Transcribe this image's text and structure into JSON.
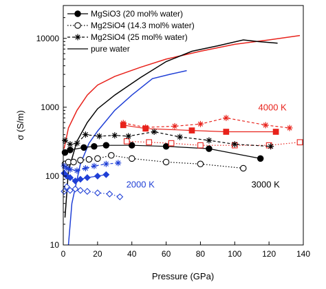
{
  "chart_data": {
    "type": "line",
    "xlabel": "Pressure (GPa)",
    "ylabel": "σ (S/m)",
    "xlim": [
      0,
      140
    ],
    "ylim": [
      10,
      30000
    ],
    "yscale": "log",
    "xticks": [
      0,
      20,
      40,
      60,
      80,
      100,
      120,
      140
    ],
    "yticks": [
      10,
      100,
      1000,
      10000
    ],
    "grid": false,
    "legend_position": "top-left",
    "legend": [
      {
        "label": "MgSiO3 (20 mol% water)",
        "marker": "filled-circle",
        "dash": "solid"
      },
      {
        "label": "Mg2SiO4 (14.3 mol% water)",
        "marker": "open-circle",
        "dash": "dotted"
      },
      {
        "label": "Mg2SiO4 (25 mol% water)",
        "marker": "asterisk",
        "dash": "dashed"
      },
      {
        "label": "pure water",
        "marker": "none",
        "dash": "solid"
      }
    ],
    "annotations": [
      {
        "text": "4000 K",
        "x": 122,
        "y": 900,
        "color": "#e8221b"
      },
      {
        "text": "3000 K",
        "x": 118,
        "y": 68,
        "color": "#000000"
      },
      {
        "text": "2000 K",
        "x": 45,
        "y": 68,
        "color": "#1f3fd6"
      }
    ],
    "series": [
      {
        "group": "pure water",
        "temperature": "4000 K",
        "color": "#e8221b",
        "marker": "none",
        "dash": "solid",
        "points": [
          [
            0.5,
            250
          ],
          [
            3,
            500
          ],
          [
            8,
            900
          ],
          [
            14,
            1500
          ],
          [
            20,
            2100
          ],
          [
            30,
            2800
          ],
          [
            45,
            3800
          ],
          [
            60,
            5000
          ],
          [
            80,
            6500
          ],
          [
            100,
            8200
          ],
          [
            120,
            9500
          ],
          [
            138,
            11000
          ]
        ]
      },
      {
        "group": "pure water",
        "temperature": "3000 K",
        "color": "#000000",
        "marker": "none",
        "dash": "solid",
        "points": [
          [
            1,
            25
          ],
          [
            3,
            120
          ],
          [
            8,
            320
          ],
          [
            14,
            600
          ],
          [
            20,
            950
          ],
          [
            30,
            1500
          ],
          [
            45,
            2700
          ],
          [
            60,
            4600
          ],
          [
            75,
            6500
          ],
          [
            90,
            7800
          ],
          [
            105,
            9500
          ],
          [
            113,
            9000
          ],
          [
            125,
            8500
          ]
        ]
      },
      {
        "group": "pure water",
        "temperature": "2000 K",
        "color": "#1f3fd6",
        "marker": "none",
        "dash": "solid",
        "points": [
          [
            3,
            10
          ],
          [
            5,
            40
          ],
          [
            10,
            150
          ],
          [
            15,
            300
          ],
          [
            20,
            450
          ],
          [
            30,
            900
          ],
          [
            40,
            1500
          ],
          [
            52,
            2600
          ],
          [
            62,
            3000
          ],
          [
            72,
            3400
          ]
        ]
      },
      {
        "group": "MgSiO3 (20 mol% water)",
        "temperature": "4000 K",
        "color": "#e8221b",
        "marker": "filled-square",
        "dash": "solid",
        "points": [
          [
            35,
            550
          ],
          [
            48,
            490
          ],
          [
            75,
            460
          ],
          [
            95,
            440
          ],
          [
            124,
            440
          ]
        ]
      },
      {
        "group": "MgSiO3 (20 mol% water)",
        "temperature": "3000 K",
        "color": "#000000",
        "marker": "filled-circle",
        "dash": "solid",
        "points": [
          [
            1,
            220
          ],
          [
            4,
            240
          ],
          [
            12,
            260
          ],
          [
            18,
            270
          ],
          [
            25,
            280
          ],
          [
            40,
            280
          ],
          [
            60,
            270
          ],
          [
            85,
            250
          ],
          [
            115,
            180
          ]
        ]
      },
      {
        "group": "MgSiO3 (20 mol% water)",
        "temperature": "2000 K",
        "color": "#1f3fd6",
        "marker": "filled-diamond",
        "dash": "solid",
        "points": [
          [
            0.5,
            110
          ],
          [
            2,
            100
          ],
          [
            4,
            95
          ],
          [
            7,
            85
          ],
          [
            10,
            90
          ],
          [
            14,
            95
          ],
          [
            20,
            100
          ],
          [
            25,
            105
          ]
        ]
      },
      {
        "group": "Mg2SiO4 (14.3 mol% water)",
        "temperature": "4000 K",
        "color": "#e8221b",
        "marker": "open-square",
        "dash": "dotted",
        "points": [
          [
            37,
            320
          ],
          [
            50,
            310
          ],
          [
            63,
            300
          ],
          [
            80,
            280
          ],
          [
            100,
            280
          ],
          [
            120,
            280
          ],
          [
            138,
            310
          ]
        ]
      },
      {
        "group": "Mg2SiO4 (14.3 mol% water)",
        "temperature": "3000 K",
        "color": "#000000",
        "marker": "open-circle",
        "dash": "dotted",
        "points": [
          [
            1,
            150
          ],
          [
            3,
            160
          ],
          [
            6,
            160
          ],
          [
            10,
            170
          ],
          [
            15,
            175
          ],
          [
            20,
            180
          ],
          [
            28,
            200
          ],
          [
            40,
            180
          ],
          [
            60,
            160
          ],
          [
            80,
            150
          ],
          [
            105,
            130
          ]
        ]
      },
      {
        "group": "Mg2SiO4 (14.3 mol% water)",
        "temperature": "2000 K",
        "color": "#1f3fd6",
        "marker": "open-diamond",
        "dash": "dotted",
        "points": [
          [
            0.5,
            60
          ],
          [
            2,
            70
          ],
          [
            4,
            62
          ],
          [
            7,
            65
          ],
          [
            10,
            62
          ],
          [
            14,
            60
          ],
          [
            20,
            57
          ],
          [
            27,
            55
          ],
          [
            33,
            50
          ]
        ]
      },
      {
        "group": "Mg2SiO4 (25 mol% water)",
        "temperature": "4000 K",
        "color": "#e8221b",
        "marker": "asterisk",
        "dash": "dashed",
        "points": [
          [
            35,
            590
          ],
          [
            48,
            510
          ],
          [
            65,
            530
          ],
          [
            80,
            570
          ],
          [
            95,
            700
          ],
          [
            118,
            550
          ],
          [
            132,
            500
          ]
        ]
      },
      {
        "group": "Mg2SiO4 (25 mol% water)",
        "temperature": "3000 K",
        "color": "#000000",
        "marker": "asterisk",
        "dash": "dashed",
        "points": [
          [
            1,
            330
          ],
          [
            4,
            290
          ],
          [
            8,
            300
          ],
          [
            13,
            400
          ],
          [
            21,
            380
          ],
          [
            30,
            390
          ],
          [
            38,
            380
          ],
          [
            53,
            440
          ],
          [
            68,
            370
          ],
          [
            85,
            330
          ],
          [
            100,
            290
          ],
          [
            121,
            270
          ]
        ]
      },
      {
        "group": "Mg2SiO4 (25 mol% water)",
        "temperature": "2000 K",
        "color": "#1f3fd6",
        "marker": "asterisk",
        "dash": "dashed",
        "points": [
          [
            0.5,
            140
          ],
          [
            2,
            130
          ],
          [
            4,
            125
          ],
          [
            8,
            120
          ],
          [
            13,
            130
          ],
          [
            18,
            140
          ],
          [
            25,
            150
          ],
          [
            32,
            155
          ]
        ]
      }
    ]
  }
}
